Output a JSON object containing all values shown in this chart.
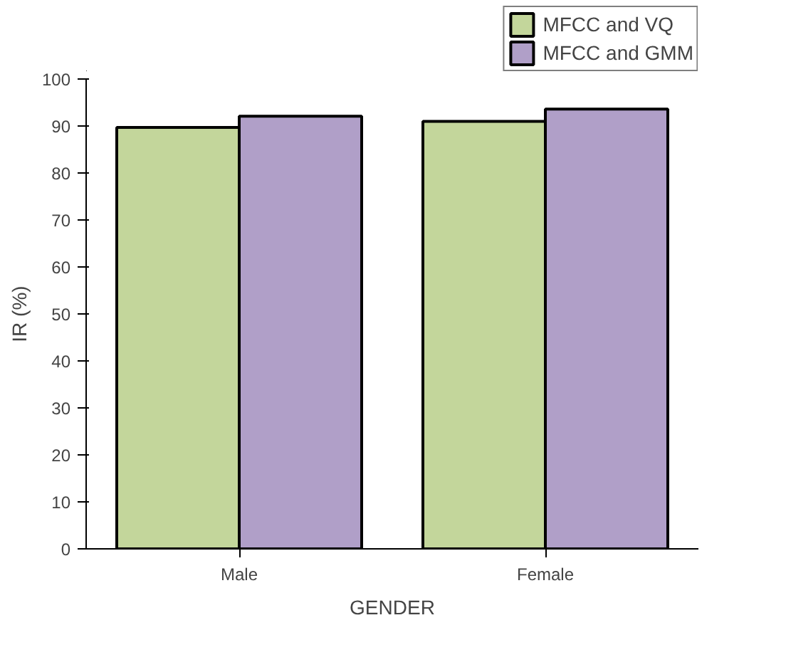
{
  "chart_data": {
    "type": "bar",
    "xlabel": "GENDER",
    "ylabel": "IR (%)",
    "categories": [
      "Male",
      "Female"
    ],
    "series": [
      {
        "name": "MFCC and VQ",
        "color": "#c3d69b",
        "values": [
          89.7,
          91.0
        ]
      },
      {
        "name": "MFCC and GMM",
        "color": "#b09fc8",
        "values": [
          92.1,
          93.6
        ]
      }
    ],
    "ylim": [
      0,
      100
    ],
    "yticks": [
      0,
      10,
      20,
      30,
      40,
      50,
      60,
      70,
      80,
      90,
      100
    ],
    "grid": false,
    "legend": "top right"
  }
}
